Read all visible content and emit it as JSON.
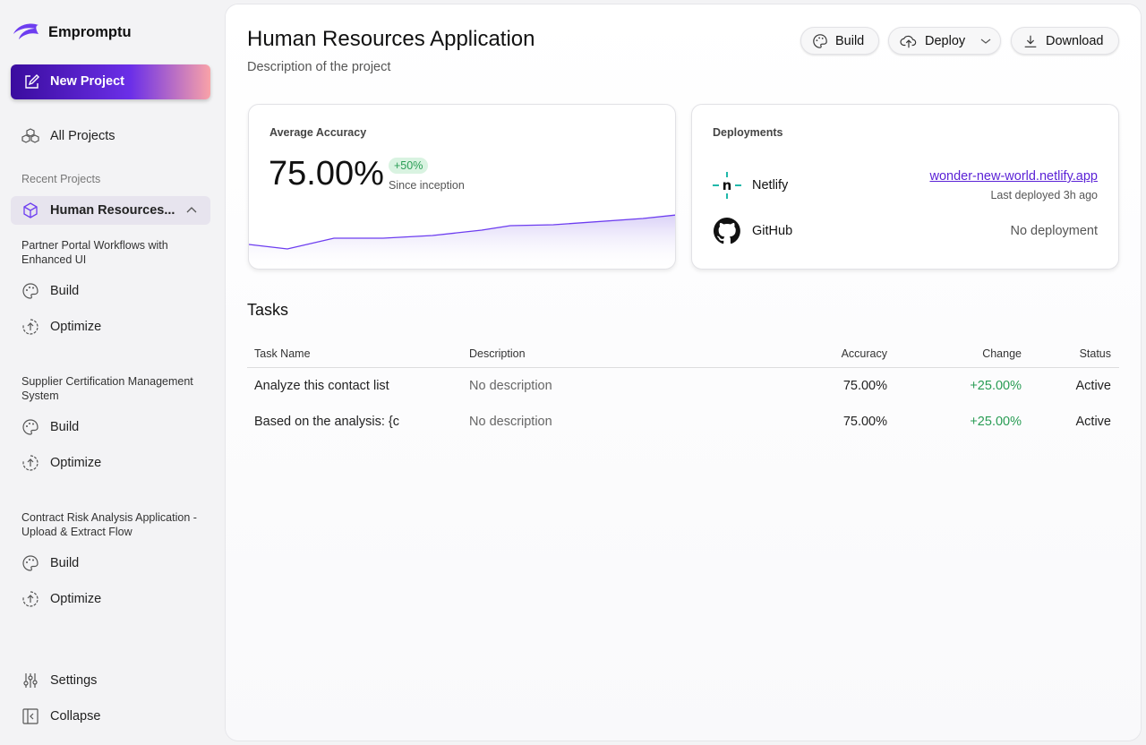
{
  "sidebar": {
    "brand": "Empromptu",
    "new_project": "New Project",
    "all_projects": "All Projects",
    "recent_label": "Recent Projects",
    "active_project": "Human Resources...",
    "projects": [
      {
        "name": "Partner Portal Workflows with Enhanced UI",
        "items": [
          "Build",
          "Optimize"
        ]
      },
      {
        "name": "Supplier Certification Management System",
        "items": [
          "Build",
          "Optimize"
        ]
      },
      {
        "name": "Contract Risk Analysis Application - Upload & Extract Flow",
        "items": [
          "Build",
          "Optimize"
        ]
      }
    ],
    "footer": [
      "Settings",
      "Collapse"
    ]
  },
  "header": {
    "title": "Human Resources Application",
    "description": "Description of the project",
    "actions": [
      "Build",
      "Deploy",
      "Download"
    ]
  },
  "accuracy": {
    "label": "Average Accuracy",
    "value": "75.00%",
    "change": "+50%",
    "since": "Since inception"
  },
  "deployments": {
    "title": "Deployments",
    "items": [
      {
        "name": "Netlify",
        "link": "wonder-new-world.netlify.app",
        "status": "Last deployed 3h ago"
      },
      {
        "name": "GitHub",
        "status": "No deployment"
      }
    ]
  },
  "tasks": {
    "title": "Tasks",
    "columns": [
      "Task Name",
      "Description",
      "Accuracy",
      "Change",
      "Status"
    ],
    "rows": [
      [
        "Analyze this contact list",
        "No description",
        "75.00%",
        "+25.00%",
        "Active"
      ],
      [
        "Based on the analysis: {c",
        "No description",
        "75.00%",
        "+25.00%",
        "Active"
      ]
    ]
  }
}
